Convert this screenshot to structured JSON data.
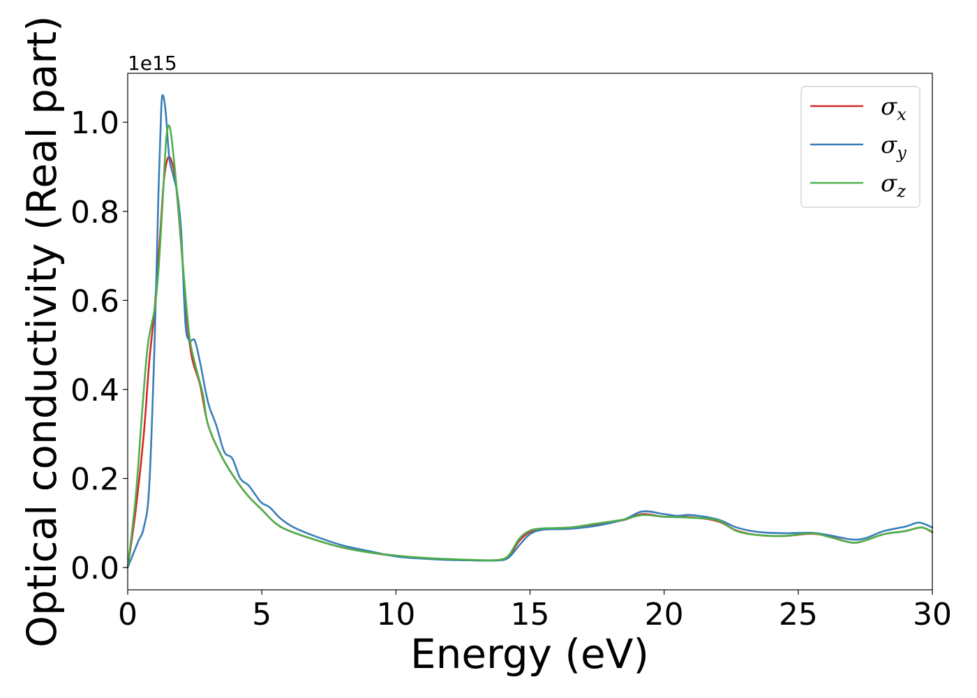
{
  "chart_data": {
    "type": "line",
    "xlabel": "Energy (eV)",
    "ylabel": "Optical conductivity (Real part)",
    "y_offset_label": "1e15",
    "xlim": [
      0,
      30
    ],
    "ylim": [
      -0.05,
      1.11
    ],
    "x_ticks": [
      0,
      5,
      10,
      15,
      20,
      25,
      30
    ],
    "y_ticks": [
      0.0,
      0.2,
      0.4,
      0.6,
      0.8,
      1.0
    ],
    "x_tick_labels": [
      "0",
      "5",
      "10",
      "15",
      "20",
      "25",
      "30"
    ],
    "y_tick_labels": [
      "0.0",
      "0.2",
      "0.4",
      "0.6",
      "0.8",
      "1.0"
    ],
    "grid": false,
    "legend_position": "top-right",
    "series": [
      {
        "name": "σx",
        "legend_main": "σ",
        "legend_sub": "x",
        "color": "#d62728",
        "points": [
          [
            0,
            0.0
          ],
          [
            0.3,
            0.13
          ],
          [
            0.6,
            0.3
          ],
          [
            0.8,
            0.46
          ],
          [
            1.0,
            0.58
          ],
          [
            1.2,
            0.74
          ],
          [
            1.35,
            0.87
          ],
          [
            1.5,
            0.92
          ],
          [
            1.65,
            0.91
          ],
          [
            1.8,
            0.86
          ],
          [
            2.0,
            0.72
          ],
          [
            2.2,
            0.56
          ],
          [
            2.4,
            0.47
          ],
          [
            2.7,
            0.41
          ],
          [
            3.0,
            0.32
          ],
          [
            3.5,
            0.25
          ],
          [
            4.0,
            0.2
          ],
          [
            4.5,
            0.16
          ],
          [
            5.0,
            0.13
          ],
          [
            5.5,
            0.1
          ],
          [
            6.0,
            0.083
          ],
          [
            7.0,
            0.062
          ],
          [
            8.0,
            0.045
          ],
          [
            9.0,
            0.034
          ],
          [
            10.0,
            0.026
          ],
          [
            11.0,
            0.021
          ],
          [
            12.0,
            0.018
          ],
          [
            13.0,
            0.016
          ],
          [
            13.8,
            0.017
          ],
          [
            14.2,
            0.025
          ],
          [
            14.6,
            0.06
          ],
          [
            15.0,
            0.08
          ],
          [
            15.5,
            0.087
          ],
          [
            16.5,
            0.09
          ],
          [
            17.5,
            0.097
          ],
          [
            18.5,
            0.107
          ],
          [
            19.2,
            0.12
          ],
          [
            20.0,
            0.114
          ],
          [
            21.0,
            0.113
          ],
          [
            22.0,
            0.104
          ],
          [
            22.7,
            0.083
          ],
          [
            23.5,
            0.073
          ],
          [
            24.5,
            0.071
          ],
          [
            25.5,
            0.076
          ],
          [
            26.2,
            0.069
          ],
          [
            27.0,
            0.056
          ],
          [
            27.5,
            0.061
          ],
          [
            28.2,
            0.075
          ],
          [
            29.0,
            0.082
          ],
          [
            29.6,
            0.09
          ],
          [
            30.0,
            0.079
          ]
        ]
      },
      {
        "name": "σy",
        "legend_main": "σ",
        "legend_sub": "y",
        "color": "#377eb8",
        "points": [
          [
            0,
            0.0
          ],
          [
            0.2,
            0.03
          ],
          [
            0.4,
            0.06
          ],
          [
            0.6,
            0.09
          ],
          [
            0.8,
            0.18
          ],
          [
            1.0,
            0.5
          ],
          [
            1.15,
            0.85
          ],
          [
            1.25,
            1.03
          ],
          [
            1.32,
            1.06
          ],
          [
            1.42,
            1.02
          ],
          [
            1.55,
            0.92
          ],
          [
            1.7,
            0.88
          ],
          [
            1.85,
            0.84
          ],
          [
            2.0,
            0.75
          ],
          [
            2.15,
            0.55
          ],
          [
            2.3,
            0.51
          ],
          [
            2.5,
            0.51
          ],
          [
            2.7,
            0.46
          ],
          [
            3.0,
            0.37
          ],
          [
            3.3,
            0.32
          ],
          [
            3.6,
            0.26
          ],
          [
            3.9,
            0.245
          ],
          [
            4.2,
            0.2
          ],
          [
            4.5,
            0.185
          ],
          [
            4.8,
            0.16
          ],
          [
            5.0,
            0.145
          ],
          [
            5.3,
            0.135
          ],
          [
            5.7,
            0.11
          ],
          [
            6.2,
            0.09
          ],
          [
            7.0,
            0.07
          ],
          [
            8.0,
            0.05
          ],
          [
            9.0,
            0.037
          ],
          [
            10.0,
            0.025
          ],
          [
            11.0,
            0.02
          ],
          [
            12.0,
            0.017
          ],
          [
            13.0,
            0.016
          ],
          [
            13.8,
            0.016
          ],
          [
            14.2,
            0.022
          ],
          [
            14.6,
            0.05
          ],
          [
            15.0,
            0.075
          ],
          [
            15.5,
            0.085
          ],
          [
            16.5,
            0.087
          ],
          [
            17.5,
            0.094
          ],
          [
            18.5,
            0.108
          ],
          [
            19.2,
            0.126
          ],
          [
            20.0,
            0.12
          ],
          [
            20.5,
            0.116
          ],
          [
            21.0,
            0.118
          ],
          [
            22.0,
            0.108
          ],
          [
            22.7,
            0.09
          ],
          [
            23.5,
            0.08
          ],
          [
            24.5,
            0.077
          ],
          [
            25.5,
            0.078
          ],
          [
            26.2,
            0.072
          ],
          [
            27.0,
            0.063
          ],
          [
            27.5,
            0.066
          ],
          [
            28.2,
            0.082
          ],
          [
            29.0,
            0.092
          ],
          [
            29.5,
            0.101
          ],
          [
            30.0,
            0.09
          ]
        ]
      },
      {
        "name": "σz",
        "legend_main": "σ",
        "legend_sub": "z",
        "color": "#4daf4a",
        "points": [
          [
            0,
            0.0
          ],
          [
            0.3,
            0.16
          ],
          [
            0.55,
            0.36
          ],
          [
            0.75,
            0.5
          ],
          [
            1.0,
            0.58
          ],
          [
            1.15,
            0.67
          ],
          [
            1.3,
            0.82
          ],
          [
            1.42,
            0.95
          ],
          [
            1.5,
            0.99
          ],
          [
            1.6,
            0.98
          ],
          [
            1.75,
            0.9
          ],
          [
            1.9,
            0.8
          ],
          [
            2.1,
            0.65
          ],
          [
            2.3,
            0.52
          ],
          [
            2.5,
            0.46
          ],
          [
            2.8,
            0.39
          ],
          [
            3.0,
            0.32
          ],
          [
            3.5,
            0.25
          ],
          [
            4.0,
            0.2
          ],
          [
            4.5,
            0.16
          ],
          [
            5.0,
            0.13
          ],
          [
            5.5,
            0.1
          ],
          [
            6.0,
            0.083
          ],
          [
            7.0,
            0.062
          ],
          [
            8.0,
            0.045
          ],
          [
            9.0,
            0.034
          ],
          [
            10.0,
            0.027
          ],
          [
            11.0,
            0.022
          ],
          [
            12.0,
            0.019
          ],
          [
            13.0,
            0.017
          ],
          [
            13.8,
            0.017
          ],
          [
            14.2,
            0.027
          ],
          [
            14.6,
            0.065
          ],
          [
            15.0,
            0.083
          ],
          [
            15.5,
            0.088
          ],
          [
            16.5,
            0.09
          ],
          [
            17.5,
            0.099
          ],
          [
            18.5,
            0.108
          ],
          [
            19.2,
            0.118
          ],
          [
            20.0,
            0.114
          ],
          [
            21.0,
            0.112
          ],
          [
            22.0,
            0.106
          ],
          [
            22.7,
            0.082
          ],
          [
            23.5,
            0.073
          ],
          [
            24.5,
            0.071
          ],
          [
            25.5,
            0.077
          ],
          [
            26.2,
            0.068
          ],
          [
            27.0,
            0.056
          ],
          [
            27.5,
            0.061
          ],
          [
            28.2,
            0.075
          ],
          [
            29.0,
            0.082
          ],
          [
            29.6,
            0.09
          ],
          [
            30.0,
            0.08
          ]
        ]
      }
    ]
  }
}
